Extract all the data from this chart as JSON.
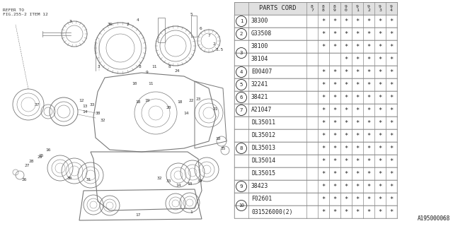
{
  "bg_color": "#ffffff",
  "table": {
    "header_col": "PARTS CORD",
    "year_cols": [
      "8\n7",
      "8\n8",
      "8\n9",
      "9\n0",
      "9\n1",
      "9\n2",
      "9\n3",
      "9\n4"
    ],
    "rows": [
      {
        "part": "38300",
        "stars": [
          0,
          1,
          1,
          1,
          1,
          1,
          1,
          1
        ]
      },
      {
        "part": "G33508",
        "stars": [
          0,
          1,
          1,
          1,
          1,
          1,
          1,
          1
        ]
      },
      {
        "part": "38100",
        "stars": [
          0,
          1,
          1,
          1,
          1,
          1,
          1,
          1
        ]
      },
      {
        "part": "38104",
        "stars": [
          0,
          0,
          0,
          1,
          1,
          1,
          1,
          1
        ]
      },
      {
        "part": "E00407",
        "stars": [
          0,
          1,
          1,
          1,
          1,
          1,
          1,
          1
        ]
      },
      {
        "part": "32241",
        "stars": [
          0,
          1,
          1,
          1,
          1,
          1,
          1,
          1
        ]
      },
      {
        "part": "38421",
        "stars": [
          0,
          1,
          1,
          1,
          1,
          1,
          1,
          1
        ]
      },
      {
        "part": "A21047",
        "stars": [
          0,
          1,
          1,
          1,
          1,
          1,
          1,
          1
        ]
      },
      {
        "part": "DL35011",
        "stars": [
          0,
          1,
          1,
          1,
          1,
          1,
          1,
          1
        ]
      },
      {
        "part": "DL35012",
        "stars": [
          0,
          1,
          1,
          1,
          1,
          1,
          1,
          1
        ]
      },
      {
        "part": "DL35013",
        "stars": [
          0,
          1,
          1,
          1,
          1,
          1,
          1,
          1
        ]
      },
      {
        "part": "DL35014",
        "stars": [
          0,
          1,
          1,
          1,
          1,
          1,
          1,
          1
        ]
      },
      {
        "part": "DL35015",
        "stars": [
          0,
          1,
          1,
          1,
          1,
          1,
          1,
          1
        ]
      },
      {
        "part": "38423",
        "stars": [
          0,
          1,
          1,
          1,
          1,
          1,
          1,
          1
        ]
      },
      {
        "part": "F02601",
        "stars": [
          0,
          1,
          1,
          1,
          1,
          1,
          1,
          1
        ]
      },
      {
        "part": "031526000(2)",
        "stars": [
          0,
          1,
          1,
          1,
          1,
          1,
          1,
          1
        ]
      }
    ],
    "groups": [
      {
        "label": "1",
        "rows": [
          0
        ]
      },
      {
        "label": "2",
        "rows": [
          1
        ]
      },
      {
        "label": "3",
        "rows": [
          2,
          3
        ]
      },
      {
        "label": "4",
        "rows": [
          4
        ]
      },
      {
        "label": "5",
        "rows": [
          5
        ]
      },
      {
        "label": "6",
        "rows": [
          6
        ]
      },
      {
        "label": "7",
        "rows": [
          7
        ]
      },
      {
        "label": "8",
        "rows": [
          8,
          9,
          10,
          11,
          12
        ]
      },
      {
        "label": "9",
        "rows": [
          13
        ]
      },
      {
        "label": "10",
        "rows": [
          14,
          15
        ]
      }
    ]
  },
  "watermark": "A195000068",
  "refer_text": "REFER TO\nFIG.255-2 ITEM 12",
  "TL": 331,
  "TT": 3,
  "NW": 20,
  "PW": 82,
  "CW": 16,
  "RH": 18,
  "FS": 5.8,
  "border_color": "#888888",
  "text_color": "#222222"
}
